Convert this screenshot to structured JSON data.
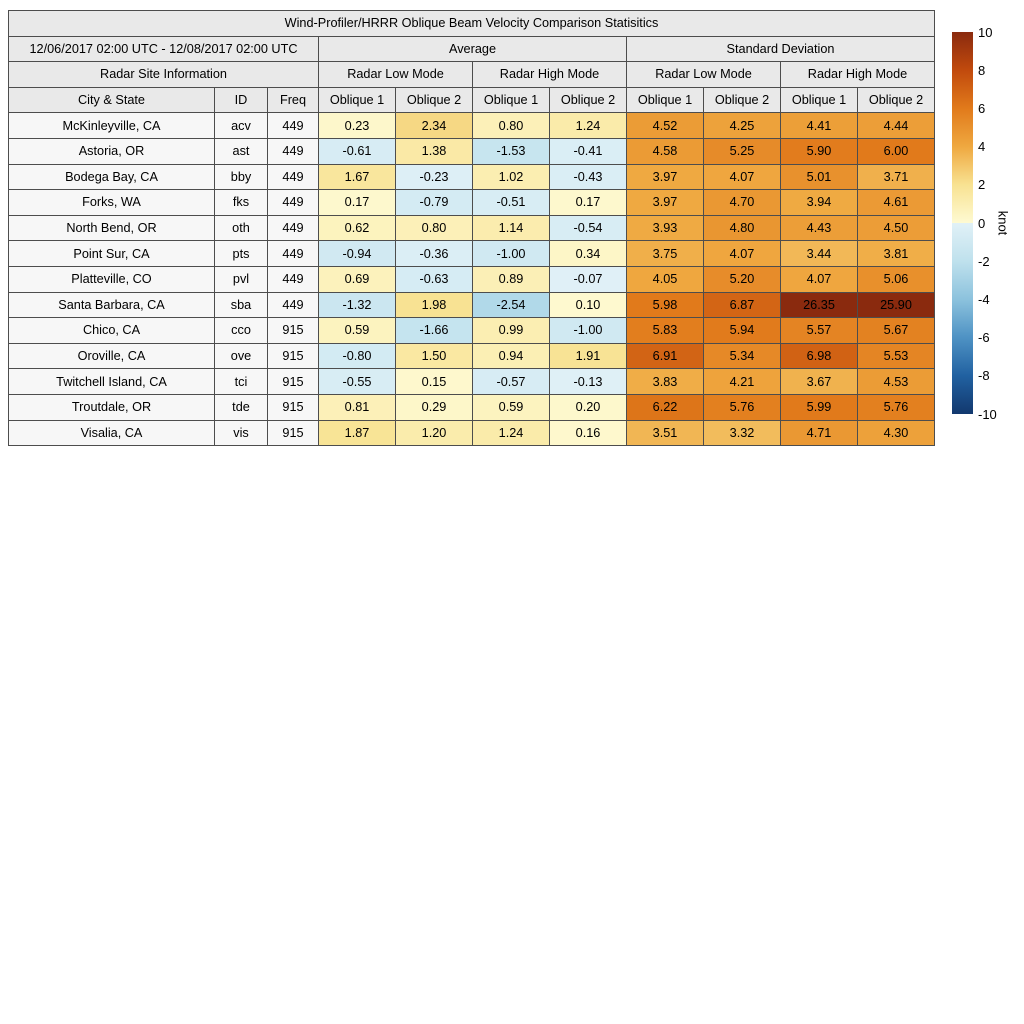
{
  "title": "Wind-Profiler/HRRR Oblique Beam Velocity Comparison Statisitics",
  "header": {
    "date_range": "12/06/2017 02:00 UTC - 12/08/2017 02:00 UTC",
    "average": "Average",
    "standard_deviation": "Standard Deviation",
    "radar_site_information": "Radar Site Information",
    "radar_low_mode": "Radar Low Mode",
    "radar_high_mode": "Radar High Mode",
    "city_state": "City & State",
    "id": "ID",
    "freq": "Freq",
    "oblique1": "Oblique 1",
    "oblique2": "Oblique 2"
  },
  "colorbar": {
    "unit": "knot",
    "min": -10,
    "max": 10,
    "ticks": [
      10,
      8,
      6,
      4,
      2,
      0,
      -2,
      -4,
      -6,
      -8,
      -10
    ],
    "stops": [
      {
        "v": 10,
        "c": "#8A2A0E"
      },
      {
        "v": 8,
        "c": "#C14A0D"
      },
      {
        "v": 6,
        "c": "#E17A1B"
      },
      {
        "v": 4,
        "c": "#EFA840"
      },
      {
        "v": 2,
        "c": "#F8E292"
      },
      {
        "v": 0.0001,
        "c": "#FEFAD2"
      },
      {
        "v": -0.0001,
        "c": "#E1F1F7"
      },
      {
        "v": -2,
        "c": "#BFE1ED"
      },
      {
        "v": -4,
        "c": "#8CC2DD"
      },
      {
        "v": -6,
        "c": "#4E92C4"
      },
      {
        "v": -8,
        "c": "#2161A1"
      },
      {
        "v": -10,
        "c": "#12386E"
      }
    ]
  },
  "chart_data": {
    "type": "heatmap",
    "title": "Wind-Profiler/HRRR Oblique Beam Velocity Comparison Statisitics",
    "unit": "knot",
    "color_range": [
      -10,
      10
    ],
    "column_groups": [
      {
        "group": "Average",
        "subgroups": [
          "Radar Low Mode",
          "Radar High Mode"
        ],
        "columns": [
          "Oblique 1",
          "Oblique 2",
          "Oblique 1",
          "Oblique 2"
        ]
      },
      {
        "group": "Standard Deviation",
        "subgroups": [
          "Radar Low Mode",
          "Radar High Mode"
        ],
        "columns": [
          "Oblique 1",
          "Oblique 2",
          "Oblique 1",
          "Oblique 2"
        ]
      }
    ],
    "rows": [
      {
        "city": "McKinleyville, CA",
        "id": "acv",
        "freq": 449,
        "values": [
          0.23,
          2.34,
          0.8,
          1.24,
          4.52,
          4.25,
          4.41,
          4.44
        ]
      },
      {
        "city": "Astoria, OR",
        "id": "ast",
        "freq": 449,
        "values": [
          -0.61,
          1.38,
          -1.53,
          -0.41,
          4.58,
          5.25,
          5.9,
          6.0
        ]
      },
      {
        "city": "Bodega Bay, CA",
        "id": "bby",
        "freq": 449,
        "values": [
          1.67,
          -0.23,
          1.02,
          -0.43,
          3.97,
          4.07,
          5.01,
          3.71
        ]
      },
      {
        "city": "Forks, WA",
        "id": "fks",
        "freq": 449,
        "values": [
          0.17,
          -0.79,
          -0.51,
          0.17,
          3.97,
          4.7,
          3.94,
          4.61
        ]
      },
      {
        "city": "North Bend, OR",
        "id": "oth",
        "freq": 449,
        "values": [
          0.62,
          0.8,
          1.14,
          -0.54,
          3.93,
          4.8,
          4.43,
          4.5
        ]
      },
      {
        "city": "Point Sur, CA",
        "id": "pts",
        "freq": 449,
        "values": [
          -0.94,
          -0.36,
          -1.0,
          0.34,
          3.75,
          4.07,
          3.44,
          3.81
        ]
      },
      {
        "city": "Platteville, CO",
        "id": "pvl",
        "freq": 449,
        "values": [
          0.69,
          -0.63,
          0.89,
          -0.07,
          4.05,
          5.2,
          4.07,
          5.06
        ]
      },
      {
        "city": "Santa Barbara, CA",
        "id": "sba",
        "freq": 449,
        "values": [
          -1.32,
          1.98,
          -2.54,
          0.1,
          5.98,
          6.87,
          26.35,
          25.9
        ]
      },
      {
        "city": "Chico, CA",
        "id": "cco",
        "freq": 915,
        "values": [
          0.59,
          -1.66,
          0.99,
          -1.0,
          5.83,
          5.94,
          5.57,
          5.67
        ]
      },
      {
        "city": "Oroville, CA",
        "id": "ove",
        "freq": 915,
        "values": [
          -0.8,
          1.5,
          0.94,
          1.91,
          6.91,
          5.34,
          6.98,
          5.53
        ]
      },
      {
        "city": "Twitchell Island, CA",
        "id": "tci",
        "freq": 915,
        "values": [
          -0.55,
          0.15,
          -0.57,
          -0.13,
          3.83,
          4.21,
          3.67,
          4.53
        ]
      },
      {
        "city": "Troutdale, OR",
        "id": "tde",
        "freq": 915,
        "values": [
          0.81,
          0.29,
          0.59,
          0.2,
          6.22,
          5.76,
          5.99,
          5.76
        ]
      },
      {
        "city": "Visalia, CA",
        "id": "vis",
        "freq": 915,
        "values": [
          1.87,
          1.2,
          1.24,
          0.16,
          3.51,
          3.32,
          4.71,
          4.3
        ]
      }
    ]
  }
}
